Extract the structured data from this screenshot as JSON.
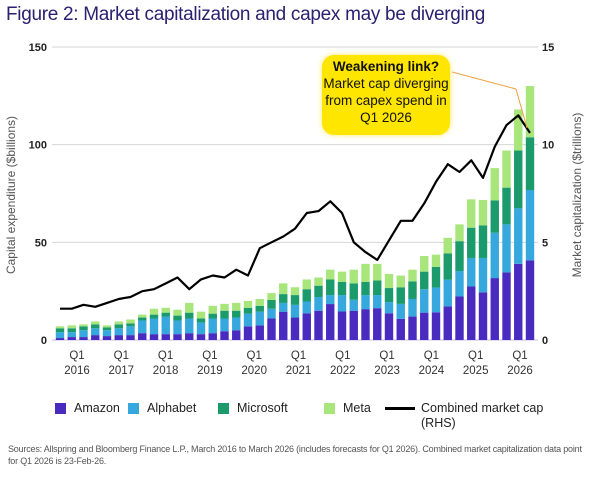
{
  "title": "Figure 2: Market capitalization and capex may be diverging",
  "annotation": {
    "heading": "Weakening link?",
    "body": "Market cap diverging from capex spend in Q1 2026"
  },
  "sources": "Sources: Allspring and Bloomberg Finance L.P., March 2016 to March 2026 (includes forecasts for Q1 2026). Combined market capitalization data point for Q1 2026 is 23-Feb-26.",
  "chart_data": {
    "type": "bar",
    "stacked": true,
    "title": "Figure 2: Market capitalization and capex may be diverging",
    "ylabel": "Capital expenditure ($billions)",
    "ylabel_right": "Market capitalization ($trillions)",
    "ylim": [
      0,
      150
    ],
    "ylim_right": [
      0,
      15
    ],
    "yticks": [
      "0",
      "50",
      "100",
      "150"
    ],
    "yticks_right": [
      "0",
      "5",
      "10",
      "15"
    ],
    "grid": true,
    "legend": "bottom",
    "categories": [
      "Q1 2016",
      "Q2 2016",
      "Q3 2016",
      "Q4 2016",
      "Q1 2017",
      "Q2 2017",
      "Q3 2017",
      "Q4 2017",
      "Q1 2018",
      "Q2 2018",
      "Q3 2018",
      "Q4 2018",
      "Q1 2019",
      "Q2 2019",
      "Q3 2019",
      "Q4 2019",
      "Q1 2020",
      "Q2 2020",
      "Q3 2020",
      "Q4 2020",
      "Q1 2021",
      "Q2 2021",
      "Q3 2021",
      "Q4 2021",
      "Q1 2022",
      "Q2 2022",
      "Q3 2022",
      "Q4 2022",
      "Q1 2023",
      "Q2 2023",
      "Q3 2023",
      "Q4 2023",
      "Q1 2024",
      "Q2 2024",
      "Q3 2024",
      "Q4 2024",
      "Q1 2025",
      "Q2 2025",
      "Q3 2025",
      "Q4 2025",
      "Q1 2026"
    ],
    "xtick_labels": [
      {
        "q": "Q1",
        "y": "2016"
      },
      {
        "q": "Q1",
        "y": "2017"
      },
      {
        "q": "Q1",
        "y": "2018"
      },
      {
        "q": "Q1",
        "y": "2019"
      },
      {
        "q": "Q1",
        "y": "2020"
      },
      {
        "q": "Q1",
        "y": "2021"
      },
      {
        "q": "Q1",
        "y": "2022"
      },
      {
        "q": "Q1",
        "y": "2023"
      },
      {
        "q": "Q1",
        "y": "2024"
      },
      {
        "q": "Q1",
        "y": "2025"
      },
      {
        "q": "Q1",
        "y": "2026"
      }
    ],
    "series": [
      {
        "name": "Amazon",
        "color": "#4a2bbf",
        "axis": "left",
        "values": [
          1,
          1.5,
          1.5,
          2.5,
          2,
          2.5,
          2.5,
          3.5,
          3,
          3,
          3,
          3.5,
          3,
          3.5,
          4.5,
          5,
          7,
          7.5,
          11,
          14.5,
          11.5,
          13.7,
          15,
          18.4,
          14.6,
          15,
          15.8,
          16.3,
          13.7,
          10.8,
          12,
          14,
          14.2,
          17.2,
          22.3,
          27.4,
          24.4,
          31.7,
          34.6,
          39,
          40.8
        ]
      },
      {
        "name": "Alphabet",
        "color": "#36a8de",
        "axis": "left",
        "values": [
          3,
          2.5,
          3.5,
          3.5,
          3,
          3.5,
          4.5,
          6.5,
          8,
          9,
          7,
          7.5,
          6,
          7.5,
          6.5,
          6.5,
          6.5,
          7,
          5,
          4.5,
          6.5,
          6,
          7,
          4.6,
          8.4,
          5.6,
          7.2,
          6.7,
          5.7,
          7.7,
          9,
          12,
          12.7,
          13.7,
          13,
          14.6,
          17.6,
          23.2,
          24.6,
          28.4,
          36
        ]
      },
      {
        "name": "Microsoft",
        "color": "#1b9a6b",
        "axis": "left",
        "values": [
          2,
          2,
          2,
          2,
          1.5,
          2,
          1.5,
          1.5,
          2,
          2,
          2.5,
          3,
          2,
          2.5,
          4,
          3.5,
          3,
          3,
          4.5,
          4.5,
          5,
          6.3,
          5.8,
          8,
          6.7,
          8.4,
          6.7,
          7.5,
          7.2,
          8.5,
          9,
          9,
          10.5,
          13.4,
          15.3,
          15.5,
          16.7,
          16.6,
          18.8,
          29.6,
          27
        ]
      },
      {
        "name": "Meta",
        "color": "#a8e67c",
        "axis": "left",
        "values": [
          1,
          1.5,
          1,
          1.5,
          1,
          1.5,
          2,
          1.5,
          3,
          2.5,
          3,
          5,
          3.5,
          4,
          3.5,
          4,
          3.5,
          3.5,
          3.5,
          5.5,
          4,
          5,
          4.2,
          5,
          5.3,
          7,
          9.3,
          8.5,
          7.2,
          6,
          6,
          8,
          6.3,
          8,
          8.6,
          14.5,
          13,
          16.5,
          19,
          21,
          26.2
        ]
      },
      {
        "name": "Combined market cap (RHS)",
        "color": "#000000",
        "type": "line",
        "axis": "right",
        "values": [
          1.6,
          1.6,
          1.8,
          1.7,
          1.9,
          2.1,
          2.2,
          2.5,
          2.6,
          2.9,
          3.2,
          2.6,
          3.1,
          3.3,
          3.2,
          3.6,
          3.3,
          4.7,
          5.0,
          5.3,
          5.7,
          6.5,
          6.6,
          7.1,
          6.5,
          5.0,
          4.5,
          4.1,
          5.1,
          6.1,
          6.1,
          7.0,
          8.1,
          9.0,
          8.6,
          9.2,
          8.3,
          9.9,
          11.0,
          11.5,
          10.6
        ]
      }
    ]
  },
  "legend": {
    "items": [
      {
        "label": "Amazon",
        "color": "#4a2bbf"
      },
      {
        "label": "Alphabet",
        "color": "#36a8de"
      },
      {
        "label": "Microsoft",
        "color": "#1b9a6b"
      },
      {
        "label": "Meta",
        "color": "#a8e67c"
      }
    ],
    "line_label": "Combined market cap",
    "line_label2": "(RHS)"
  }
}
